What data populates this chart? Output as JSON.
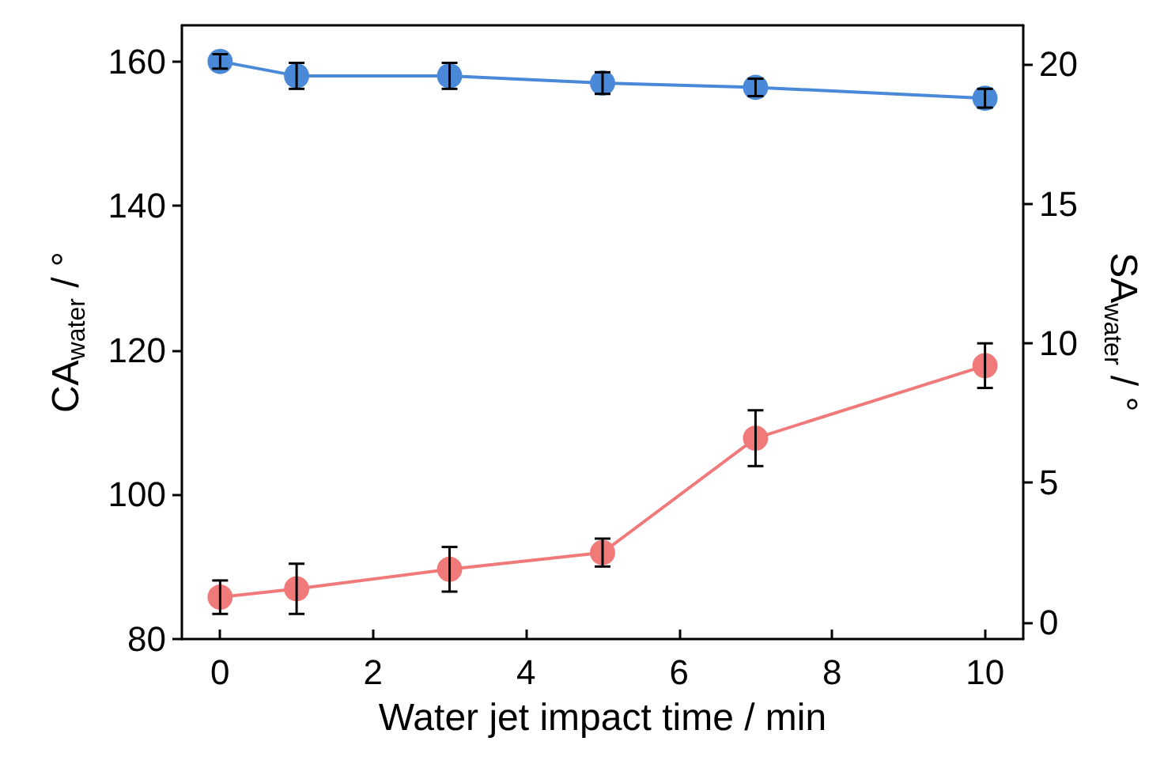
{
  "chart_data": {
    "type": "line",
    "xlabel": "Water jet impact time / min",
    "ylabel": "CA$_{water}$ / °",
    "y2label": "SA$_{water}$ / °",
    "x": [
      0,
      1,
      3,
      5,
      7,
      10
    ],
    "series": [
      {
        "color": "#4a88d8",
        "values": [
          160,
          158,
          158,
          157,
          156.4,
          154.9
        ],
        "errors": [
          1,
          1.8,
          1.8,
          1.5,
          1.2,
          1.3
        ]
      },
      {
        "color": "#f07a7a",
        "axis": "y2",
        "values": [
          0.9,
          1.2,
          1.9,
          2.5,
          6.6,
          9.2
        ],
        "errors": [
          0.6,
          0.9,
          0.8,
          0.5,
          1.0,
          0.8
        ]
      }
    ],
    "xlim": [
      -0.5,
      10.5
    ],
    "xticks": [
      0,
      2,
      4,
      6,
      8,
      10
    ],
    "ylim": [
      80,
      165
    ],
    "yticks": [
      80,
      100,
      120,
      140,
      160
    ],
    "y2lim": [
      -0.6,
      21.4
    ],
    "y2ticks": [
      0,
      5,
      10,
      15,
      20
    ],
    "marker": "circle",
    "line_style": "solid"
  }
}
